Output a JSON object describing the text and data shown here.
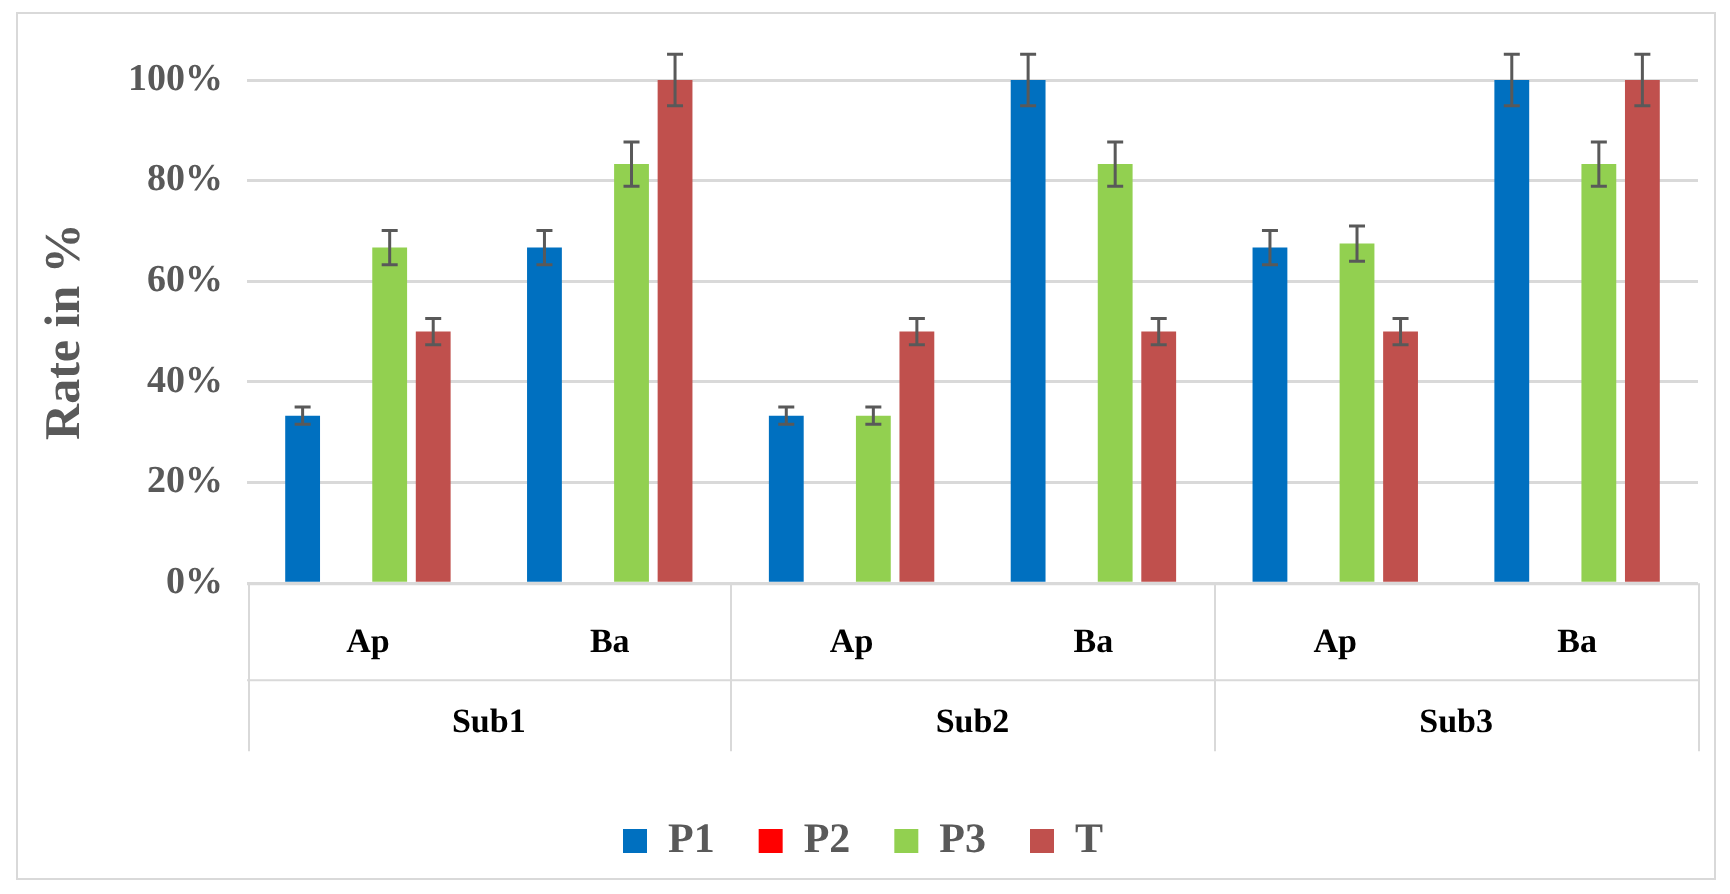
{
  "chart_data": {
    "type": "bar",
    "ylabel": "Rate in %",
    "categories": [
      "Ap",
      "Ba",
      "Ap",
      "Ba",
      "Ap",
      "Ba"
    ],
    "annotations": [
      "Sub1",
      "Sub2",
      "Sub3"
    ],
    "series": [
      {
        "name": "P1",
        "color": "#0070c0",
        "values": [
          33.3,
          66.7,
          33.3,
          100,
          66.7,
          100
        ],
        "errors": [
          1.7,
          3.4,
          1.7,
          5.1,
          3.4,
          5.1
        ]
      },
      {
        "name": "P2",
        "color": "#ff0000",
        "values": [
          0,
          0,
          0,
          0,
          0,
          0
        ]
      },
      {
        "name": "P3",
        "color": "#92d050",
        "values": [
          66.7,
          83.3,
          33.3,
          83.3,
          67.5,
          83.3
        ],
        "errors": [
          3.4,
          4.4,
          1.7,
          4.4,
          3.5,
          4.4
        ]
      },
      {
        "name": "T",
        "color": "#c0504d",
        "values": [
          50,
          100,
          50,
          50,
          50,
          100
        ],
        "errors": [
          2.6,
          5.1,
          2.6,
          2.6,
          2.6,
          5.1
        ]
      }
    ],
    "ylim": [
      0,
      100
    ],
    "yticks": [
      {
        "value": 0,
        "label": "0%"
      },
      {
        "value": 20,
        "label": "20%"
      },
      {
        "value": 40,
        "label": "40%"
      },
      {
        "value": 60,
        "label": "60%"
      },
      {
        "value": 80,
        "label": "80%"
      },
      {
        "value": 100,
        "label": "100%"
      }
    ],
    "grid": "y",
    "legend": "bottom"
  }
}
